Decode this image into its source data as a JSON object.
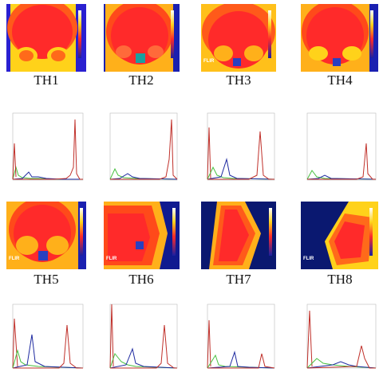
{
  "panels": [
    {
      "label": "TH1",
      "flir": "",
      "top_text": "",
      "bottom_text": ""
    },
    {
      "label": "TH2",
      "flir": "",
      "top_text": "",
      "bottom_text": ""
    },
    {
      "label": "TH3",
      "flir": "FLIR",
      "top_text": "",
      "bottom_text": ""
    },
    {
      "label": "TH4",
      "flir": "",
      "top_text": "",
      "bottom_text": ""
    },
    {
      "label": "TH5",
      "flir": "FLIR",
      "top_text": "",
      "bottom_text": ""
    },
    {
      "label": "TH6",
      "flir": "FLIR",
      "top_text": "",
      "bottom_text": ""
    },
    {
      "label": "TH7",
      "flir": "",
      "top_text": "",
      "bottom_text": ""
    },
    {
      "label": "TH8",
      "flir": "FLIR",
      "top_text": "",
      "bottom_text": ""
    }
  ],
  "colors": {
    "hot": "#ff2a2a",
    "warm": "#ffd21a",
    "mid": "#ff6a1a",
    "cool": "#1a40ff",
    "cold": "#0a1870",
    "red_series": "#c0302a",
    "green_series": "#48c040",
    "blue_series": "#1e2aa0"
  },
  "icons": {
    "scale_bar": "thermal-colorbar-icon",
    "roi_box": "roi-square-icon"
  }
}
